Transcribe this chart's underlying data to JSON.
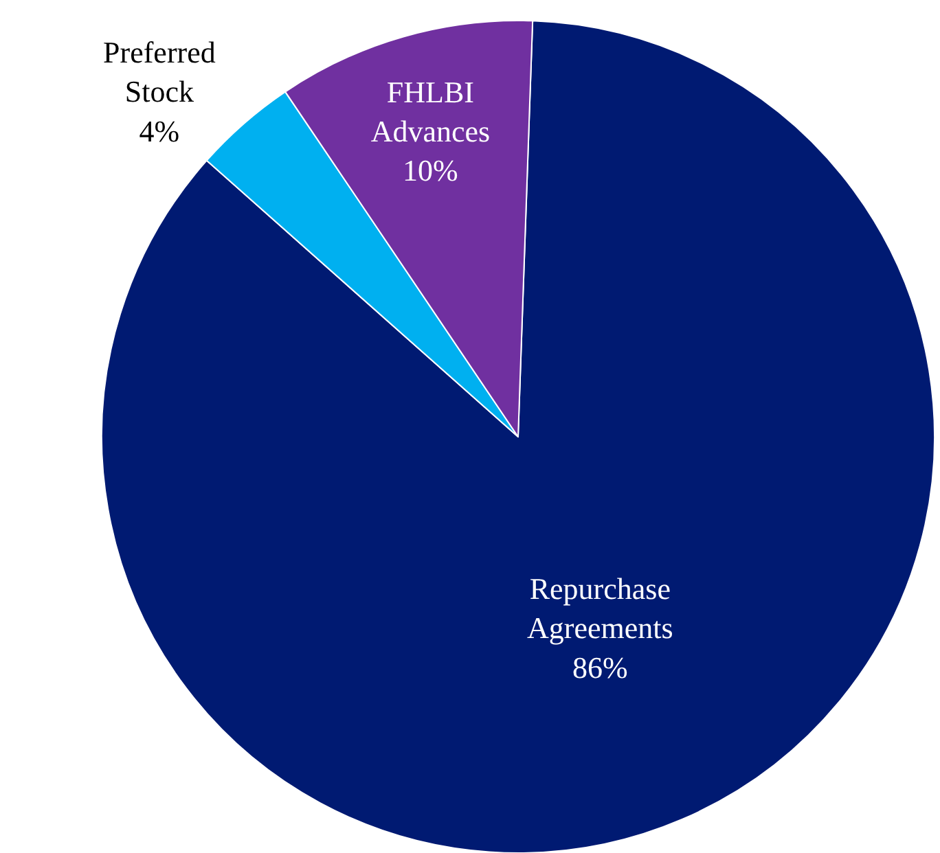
{
  "chart_data": {
    "type": "pie",
    "categories": [
      "Repurchase Agreements",
      "Preferred Stock",
      "FHLBI Advances"
    ],
    "values": [
      86,
      4,
      10
    ],
    "colors": [
      "#001a72",
      "#00b0f0",
      "#7030a0"
    ],
    "value_labels": [
      "86%",
      "4%",
      "10%"
    ],
    "legend": false
  }
}
